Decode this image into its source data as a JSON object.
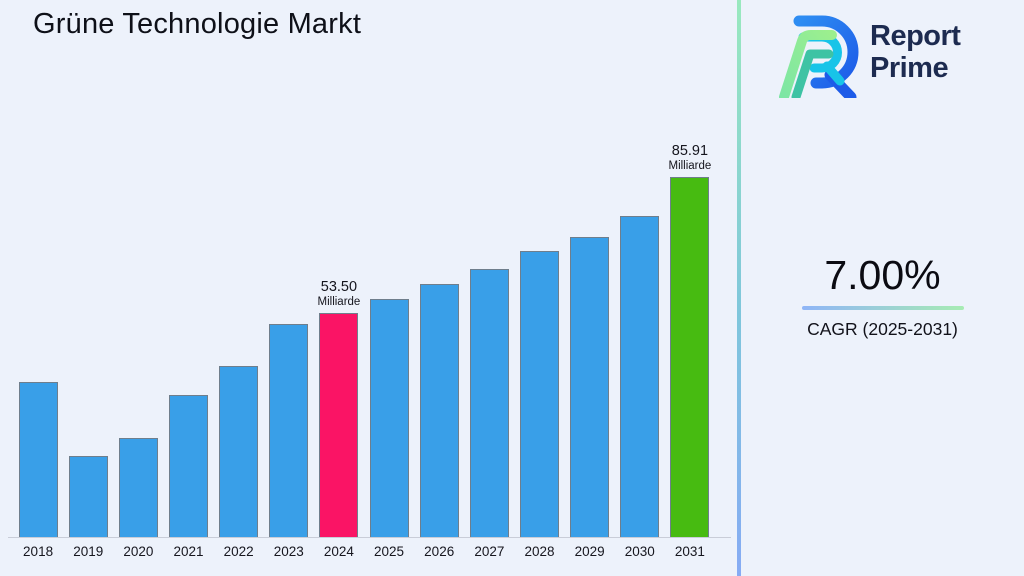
{
  "page": {
    "background": "#EDF2FB"
  },
  "header": {
    "title": "Grüne Technologie Markt"
  },
  "logo": {
    "line1": "Report",
    "line2": "Prime"
  },
  "kpi": {
    "value": "7.00%",
    "label": "CAGR (2025-2031)"
  },
  "divider": {
    "top_color": "#99E9BE",
    "bottom_color": "#86ABF4"
  },
  "chart_data": {
    "type": "bar",
    "title": "Grüne Technologie Markt",
    "unit": "Milliarde",
    "categories": [
      "2018",
      "2019",
      "2020",
      "2021",
      "2022",
      "2023",
      "2024",
      "2025",
      "2026",
      "2027",
      "2028",
      "2029",
      "2030",
      "2031"
    ],
    "values": [
      36.9,
      19.3,
      23.6,
      33.8,
      40.9,
      50.9,
      53.5,
      56.8,
      60.4,
      63.9,
      68.3,
      71.6,
      76.6,
      85.91
    ],
    "ylim": [
      0,
      90
    ],
    "grid": false,
    "xlabel": "",
    "ylabel": "",
    "colors": {
      "default": "#399FE8",
      "2024": "#FA1465",
      "2031": "#47BB11"
    },
    "annotations": [
      {
        "category": "2024",
        "value_label": "53.50",
        "unit_label": "Milliarde"
      },
      {
        "category": "2031",
        "value_label": "85.91",
        "unit_label": "Milliarde"
      }
    ]
  }
}
